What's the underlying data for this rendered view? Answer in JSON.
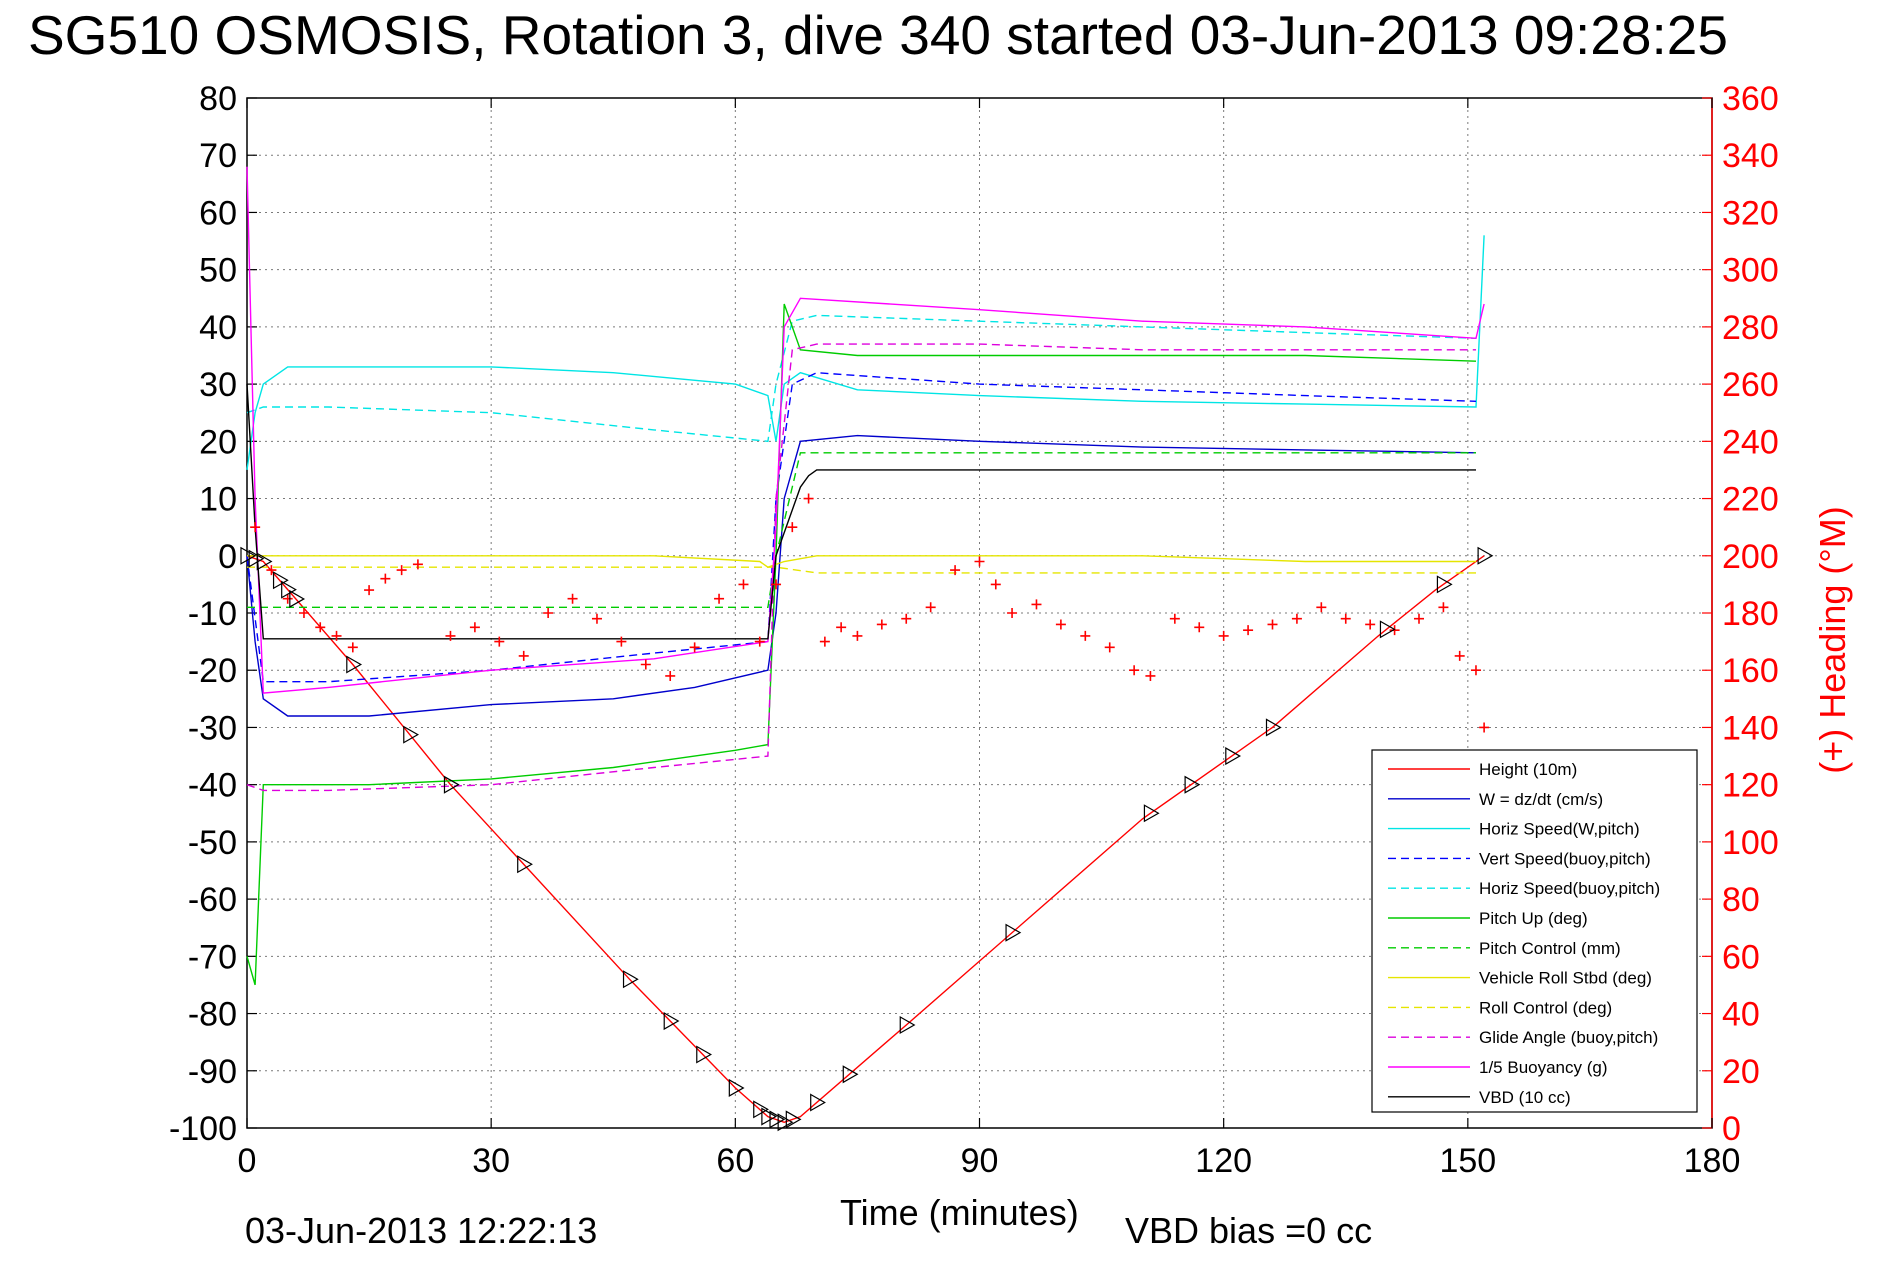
{
  "chart_data": {
    "type": "line",
    "title": "SG510 OSMOSIS, Rotation 3, dive 340 started 03-Jun-2013 09:28:25",
    "xlabel": "Time (minutes)",
    "ylabel_right": "(+) Heading (°M)",
    "xlim": [
      0,
      180
    ],
    "ylim": [
      -100,
      80
    ],
    "y2lim": [
      0,
      360
    ],
    "x_ticks": [
      "0",
      "30",
      "60",
      "90",
      "120",
      "150",
      "180"
    ],
    "y_ticks": [
      "80",
      "70",
      "60",
      "50",
      "40",
      "30",
      "20",
      "10",
      "0",
      "-10",
      "-20",
      "-30",
      "-40",
      "-50",
      "-60",
      "-70",
      "-80",
      "-90",
      "-100"
    ],
    "y2_ticks": [
      "360",
      "340",
      "320",
      "300",
      "280",
      "260",
      "240",
      "220",
      "200",
      "180",
      "160",
      "140",
      "120",
      "100",
      "80",
      "60",
      "40",
      "20",
      "0"
    ],
    "grid": true,
    "legend_position": "lower-right",
    "footer_date": "03-Jun-2013 12:22:13",
    "footer_bias": "VBD bias =0 cc",
    "series": [
      {
        "name": "Height (10m)",
        "color": "#ff0000",
        "style": "solid",
        "x": [
          0,
          2,
          13,
          25,
          47,
          60,
          64,
          66,
          68,
          81,
          110,
          126,
          139,
          146,
          152
        ],
        "y": [
          0,
          -1,
          -19,
          -40,
          -74,
          -93,
          -98,
          -99,
          -98,
          -82,
          -46,
          -30,
          -14,
          -6,
          0
        ]
      },
      {
        "name": "W = dz/dt (cm/s)",
        "color": "#0000cc",
        "style": "solid",
        "x": [
          0,
          1,
          2,
          5,
          15,
          30,
          45,
          55,
          64,
          65,
          66,
          68,
          75,
          90,
          110,
          130,
          151
        ],
        "y": [
          0,
          -15,
          -25,
          -28,
          -28,
          -26,
          -25,
          -23,
          -20,
          -10,
          10,
          20,
          21,
          20,
          19,
          18.5,
          18
        ]
      },
      {
        "name": "Horiz Speed(W,pitch)",
        "color": "#00e5e5",
        "style": "solid",
        "x": [
          0,
          1,
          2,
          5,
          15,
          30,
          45,
          60,
          64,
          65,
          66,
          68,
          75,
          90,
          110,
          130,
          151,
          152
        ],
        "y": [
          15,
          25,
          30,
          33,
          33,
          33,
          32,
          30,
          28,
          20,
          30,
          32,
          29,
          28,
          27,
          26.5,
          26,
          56
        ]
      },
      {
        "name": "Vert Speed(buoy,pitch)",
        "color": "#0000ff",
        "style": "dashed",
        "x": [
          0,
          2,
          10,
          30,
          50,
          64,
          65,
          67,
          70,
          90,
          110,
          130,
          151
        ],
        "y": [
          0,
          -22,
          -22,
          -20,
          -17,
          -15,
          10,
          30,
          32,
          30,
          29,
          28,
          27
        ]
      },
      {
        "name": "Horiz Speed(buoy,pitch)",
        "color": "#00e5e5",
        "style": "dashed",
        "x": [
          0,
          2,
          10,
          30,
          50,
          64,
          65,
          67,
          70,
          90,
          110,
          130,
          151
        ],
        "y": [
          25,
          26,
          26,
          25,
          22,
          20,
          30,
          41,
          42,
          41,
          40,
          39,
          38
        ]
      },
      {
        "name": "Pitch Up (deg)",
        "color": "#00cc00",
        "style": "solid",
        "x": [
          0,
          1,
          2,
          5,
          15,
          30,
          45,
          60,
          64,
          65,
          66,
          68,
          75,
          90,
          110,
          130,
          151
        ],
        "y": [
          -70,
          -75,
          -40,
          -40,
          -40,
          -39,
          -37,
          -34,
          -33,
          0,
          44,
          36,
          35,
          35,
          35,
          35,
          34
        ]
      },
      {
        "name": "Pitch Control (mm)",
        "color": "#00cc00",
        "style": "dashed",
        "x": [
          0,
          2,
          64,
          65,
          68,
          70,
          151
        ],
        "y": [
          -9,
          -9,
          -9,
          0,
          18,
          18,
          18
        ]
      },
      {
        "name": "Vehicle Roll Stbd (deg)",
        "color": "#e5e500",
        "style": "solid",
        "x": [
          0,
          3,
          10,
          30,
          50,
          63,
          64,
          66,
          70,
          90,
          110,
          130,
          151
        ],
        "y": [
          0,
          0,
          0,
          0,
          0,
          -1,
          -2,
          -1,
          0,
          0,
          0,
          -1,
          -1
        ]
      },
      {
        "name": "Roll Control (deg)",
        "color": "#e5e500",
        "style": "dashed",
        "x": [
          0,
          3,
          30,
          64,
          65,
          70,
          110,
          151
        ],
        "y": [
          -2,
          -2,
          -2,
          -2,
          -2,
          -3,
          -3,
          -3
        ]
      },
      {
        "name": "Glide Angle (buoy,pitch)",
        "color": "#dd00dd",
        "style": "dashed",
        "x": [
          0,
          2,
          10,
          30,
          50,
          64,
          65,
          67,
          70,
          90,
          110,
          130,
          151
        ],
        "y": [
          -40,
          -41,
          -41,
          -40,
          -37,
          -35,
          10,
          36,
          37,
          37,
          36,
          36,
          36
        ]
      },
      {
        "name": "1/5 Buoyancy (g)",
        "color": "#ff00ff",
        "style": "solid",
        "x": [
          0,
          1,
          2,
          10,
          30,
          50,
          64,
          65,
          66,
          68,
          90,
          110,
          130,
          151,
          152
        ],
        "y": [
          68,
          10,
          -24,
          -23,
          -20,
          -18,
          -15,
          5,
          40,
          45,
          43,
          41,
          40,
          38,
          44
        ]
      },
      {
        "name": "VBD (10 cc)",
        "color": "#000000",
        "style": "solid",
        "x": [
          0,
          1,
          2,
          10,
          30,
          50,
          64,
          65,
          68,
          69,
          70,
          151
        ],
        "y": [
          30,
          5,
          -14.5,
          -14.5,
          -14.5,
          -14.5,
          -14.5,
          0,
          12,
          14,
          15,
          15
        ]
      }
    ],
    "heading_series": {
      "name": "(+) Heading",
      "color": "#ff0000",
      "marker": "+",
      "axis": "right",
      "x": [
        1,
        3,
        5,
        7,
        9,
        11,
        13,
        15,
        17,
        19,
        21,
        25,
        28,
        31,
        34,
        37,
        40,
        43,
        46,
        49,
        52,
        55,
        58,
        61,
        63,
        65,
        67,
        69,
        71,
        73,
        75,
        78,
        81,
        84,
        87,
        90,
        92,
        94,
        97,
        100,
        103,
        106,
        109,
        111,
        114,
        117,
        120,
        123,
        126,
        129,
        132,
        135,
        138,
        141,
        144,
        147,
        149,
        151,
        152
      ],
      "y": [
        210,
        195,
        185,
        180,
        175,
        172,
        168,
        188,
        192,
        195,
        197,
        172,
        175,
        170,
        165,
        180,
        185,
        178,
        170,
        162,
        158,
        168,
        185,
        190,
        170,
        190,
        210,
        220,
        170,
        175,
        172,
        176,
        178,
        182,
        195,
        198,
        190,
        180,
        183,
        176,
        172,
        168,
        160,
        158,
        178,
        175,
        172,
        174,
        176,
        178,
        182,
        178,
        176,
        174,
        178,
        182,
        165,
        160,
        140
      ]
    },
    "height_markers_x": [
      0,
      1,
      2,
      4,
      5,
      6,
      13,
      20,
      25,
      34,
      47,
      52,
      56,
      60,
      63,
      64,
      65,
      66,
      67,
      70,
      74,
      81,
      94,
      111,
      116,
      121,
      126,
      140,
      147,
      152
    ]
  }
}
